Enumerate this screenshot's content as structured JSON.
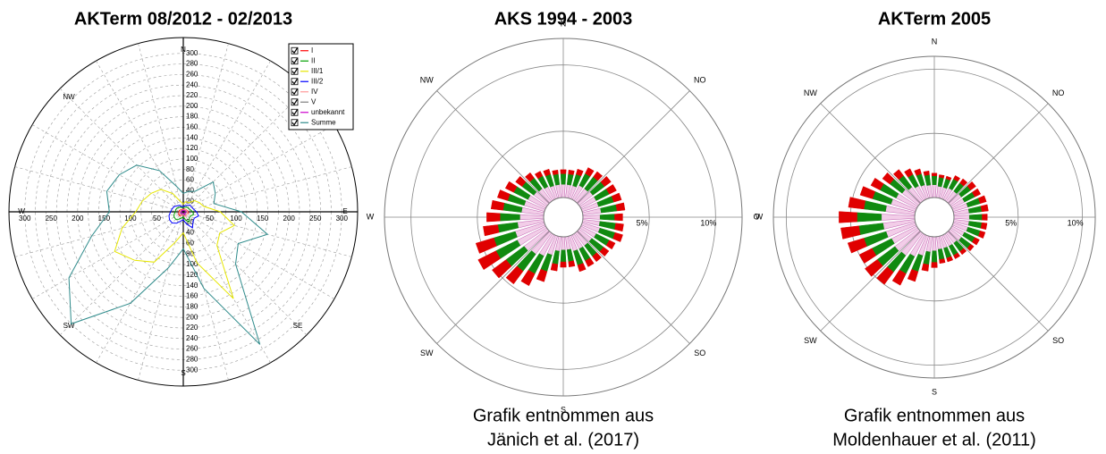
{
  "chart_data": [
    {
      "type": "radar",
      "title": "AKTerm 08/2012 - 02/2013",
      "directions": [
        "N",
        null,
        "E",
        "SE",
        "S",
        "SW",
        "W",
        "NW"
      ],
      "ylim": [
        0,
        330
      ],
      "yticks": [
        20,
        40,
        60,
        80,
        100,
        120,
        140,
        160,
        180,
        200,
        220,
        240,
        260,
        280,
        300
      ],
      "xticks": [
        50,
        100,
        150,
        200,
        250,
        300
      ],
      "legend": "upper right",
      "series": [
        {
          "name": "I",
          "color": "#ff0000",
          "values": [
            5,
            5,
            6,
            6,
            7,
            8,
            9,
            10,
            8,
            8,
            10,
            8,
            6,
            6,
            8,
            10,
            10,
            9,
            8,
            8,
            7,
            6,
            5,
            5
          ]
        },
        {
          "name": "II",
          "color": "#00a000",
          "values": [
            8,
            9,
            10,
            12,
            12,
            14,
            18,
            20,
            16,
            16,
            22,
            16,
            10,
            12,
            16,
            20,
            20,
            18,
            15,
            15,
            14,
            12,
            10,
            8
          ]
        },
        {
          "name": "III/1",
          "color": "#e6e600",
          "values": [
            15,
            20,
            20,
            30,
            35,
            40,
            70,
            100,
            80,
            90,
            190,
            100,
            40,
            60,
            110,
            130,
            150,
            120,
            90,
            80,
            70,
            60,
            40,
            20
          ]
        },
        {
          "name": "III/2",
          "color": "#0000ff",
          "values": [
            10,
            12,
            14,
            18,
            18,
            20,
            25,
            30,
            24,
            26,
            35,
            24,
            15,
            18,
            25,
            30,
            30,
            28,
            24,
            22,
            20,
            16,
            14,
            10
          ]
        },
        {
          "name": "IV",
          "color": "#ff9999",
          "values": [
            4,
            4,
            5,
            6,
            6,
            7,
            8,
            9,
            8,
            8,
            10,
            8,
            5,
            6,
            7,
            8,
            8,
            8,
            7,
            6,
            6,
            5,
            4,
            4
          ]
        },
        {
          "name": "V",
          "color": "#808080",
          "values": [
            3,
            3,
            3,
            4,
            4,
            5,
            6,
            6,
            5,
            5,
            7,
            5,
            4,
            4,
            5,
            6,
            6,
            5,
            5,
            4,
            4,
            4,
            3,
            3
          ]
        },
        {
          "name": "unbekannt",
          "color": "#cc00cc",
          "values": [
            3,
            3,
            3,
            3,
            4,
            4,
            5,
            5,
            4,
            4,
            6,
            4,
            3,
            3,
            4,
            5,
            5,
            5,
            4,
            4,
            3,
            3,
            3,
            3
          ]
        },
        {
          "name": "Summe",
          "color": "#2e8b8b",
          "values": [
            35,
            40,
            45,
            80,
            70,
            60,
            110,
            165,
            120,
            140,
            290,
            150,
            70,
            110,
            200,
            300,
            250,
            180,
            140,
            150,
            140,
            125,
            90,
            50
          ]
        }
      ]
    },
    {
      "type": "windrose",
      "title": "AKS 1994 - 2003",
      "caption": [
        "Grafik entnommen aus",
        "Jänich et al. (2017)"
      ],
      "directions": [
        "N",
        "NO",
        "O",
        "SO",
        "S",
        "SW",
        "W",
        "NW"
      ],
      "ylim": [
        0,
        12
      ],
      "yticks": [
        {
          "value": 5,
          "label": "5%"
        },
        {
          "value": 10,
          "label": "10%"
        }
      ],
      "series": [
        {
          "color": "#f2cde8",
          "values": [
            1.0,
            1.0,
            1.0,
            1.2,
            1.2,
            1.3,
            1.3,
            1.3,
            1.4,
            1.3,
            1.3,
            1.4,
            1.3,
            1.2,
            1.2,
            1.2,
            1.2,
            1.0,
            1.0,
            1.1,
            1.5,
            1.8,
            2.0,
            2.2,
            2.4,
            2.3,
            2.0,
            1.8,
            1.7,
            1.6,
            1.5,
            1.3,
            1.2,
            1.1,
            1.0,
            1.0
          ]
        },
        {
          "color": "#108a10",
          "values": [
            0.8,
            0.8,
            0.9,
            1.0,
            1.1,
            1.1,
            1.1,
            1.2,
            1.2,
            1.1,
            1.2,
            1.2,
            1.1,
            1.1,
            1.0,
            1.0,
            1.1,
            0.9,
            0.9,
            1.0,
            1.3,
            1.5,
            1.6,
            1.7,
            1.8,
            1.7,
            1.5,
            1.5,
            1.4,
            1.3,
            1.2,
            1.1,
            1.0,
            0.9,
            0.9,
            0.8
          ]
        },
        {
          "color": "#e00000",
          "values": [
            0.3,
            0.3,
            0.4,
            0.5,
            0.5,
            0.6,
            0.6,
            0.6,
            0.6,
            0.6,
            0.6,
            0.6,
            0.5,
            0.5,
            0.5,
            0.5,
            0.5,
            0.4,
            0.4,
            0.5,
            0.8,
            1.0,
            1.2,
            1.3,
            1.5,
            1.4,
            1.1,
            1.0,
            0.9,
            0.8,
            0.7,
            0.6,
            0.5,
            0.4,
            0.4,
            0.3
          ]
        }
      ]
    },
    {
      "type": "windrose",
      "title": "AKTerm 2005",
      "caption": [
        "Grafik entnommen aus",
        "Moldenhauer et al. (2011)"
      ],
      "directions": [
        "N",
        "NO",
        null,
        "SO",
        "S",
        "SW",
        "W",
        "NW"
      ],
      "ylim": [
        0,
        11
      ],
      "yticks": [
        {
          "value": 5,
          "label": "5%"
        },
        {
          "value": 10,
          "label": "10%"
        }
      ],
      "series": [
        {
          "color": "#f2cde8",
          "values": [
            1.0,
            0.9,
            0.9,
            1.0,
            1.0,
            1.1,
            1.1,
            1.2,
            1.2,
            1.2,
            1.2,
            1.2,
            1.1,
            1.1,
            1.0,
            1.0,
            1.0,
            1.0,
            1.1,
            1.2,
            1.6,
            1.9,
            2.2,
            2.3,
            2.2,
            2.4,
            2.5,
            2.6,
            2.3,
            2.0,
            1.8,
            1.6,
            1.4,
            1.2,
            1.1,
            1.0
          ]
        },
        {
          "color": "#108a10",
          "values": [
            0.7,
            0.7,
            0.7,
            0.8,
            0.8,
            0.9,
            0.9,
            1.0,
            1.0,
            1.0,
            1.0,
            1.0,
            0.9,
            0.9,
            0.8,
            0.8,
            0.8,
            0.8,
            0.9,
            1.0,
            1.3,
            1.5,
            1.6,
            1.7,
            1.7,
            1.8,
            1.9,
            1.9,
            1.7,
            1.5,
            1.4,
            1.2,
            1.1,
            1.0,
            0.9,
            0.8
          ]
        },
        {
          "color": "#e00000",
          "values": [
            0.2,
            0.2,
            0.2,
            0.3,
            0.4,
            0.5,
            0.5,
            0.5,
            0.5,
            0.4,
            0.4,
            0.4,
            0.4,
            0.3,
            0.3,
            0.3,
            0.3,
            0.3,
            0.4,
            0.5,
            0.8,
            1.0,
            1.2,
            1.2,
            1.1,
            1.3,
            1.4,
            1.4,
            1.2,
            1.0,
            0.8,
            0.7,
            0.6,
            0.5,
            0.4,
            0.3
          ]
        }
      ]
    }
  ]
}
